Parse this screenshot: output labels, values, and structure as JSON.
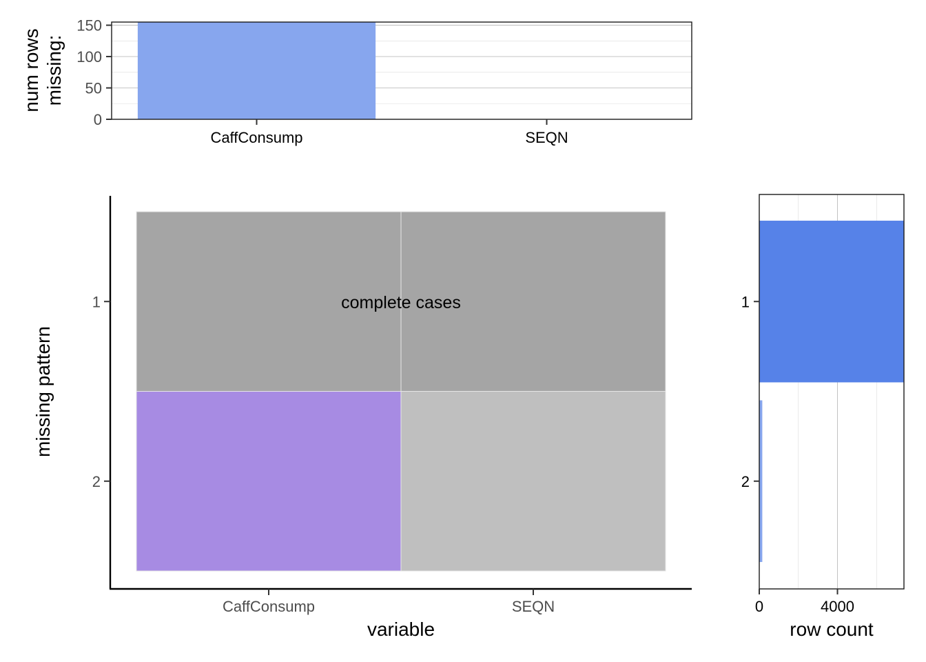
{
  "chart_data": [
    {
      "id": "top",
      "type": "bar",
      "categories": [
        "CaffConsump",
        "SEQN"
      ],
      "values": [
        155,
        0
      ],
      "ylabel_lines": [
        "num rows",
        "missing:"
      ],
      "ylim": [
        0,
        155
      ],
      "yticks": [
        0,
        50,
        100,
        150
      ],
      "bar_color": "#87a6ee",
      "grid": true
    },
    {
      "id": "main",
      "type": "heatmap",
      "xlabel": "variable",
      "ylabel": "missing pattern",
      "x_categories": [
        "CaffConsump",
        "SEQN"
      ],
      "y_categories": [
        "1",
        "2"
      ],
      "cells": [
        {
          "pattern": "1",
          "variable": "CaffConsump",
          "fill": "#a5a5a5"
        },
        {
          "pattern": "1",
          "variable": "SEQN",
          "fill": "#a5a5a5"
        },
        {
          "pattern": "2",
          "variable": "CaffConsump",
          "fill": "#a78be3"
        },
        {
          "pattern": "2",
          "variable": "SEQN",
          "fill": "#bfbfbf"
        }
      ],
      "annotation": "complete cases"
    },
    {
      "id": "right",
      "type": "bar",
      "orientation": "horizontal",
      "categories": [
        "1",
        "2"
      ],
      "values": [
        7400,
        155
      ],
      "xlabel": "row count",
      "xlim": [
        0,
        7400
      ],
      "xticks": [
        0,
        4000
      ],
      "bar_colors": [
        "#5682e8",
        "#87a6ee"
      ],
      "grid": true
    }
  ]
}
